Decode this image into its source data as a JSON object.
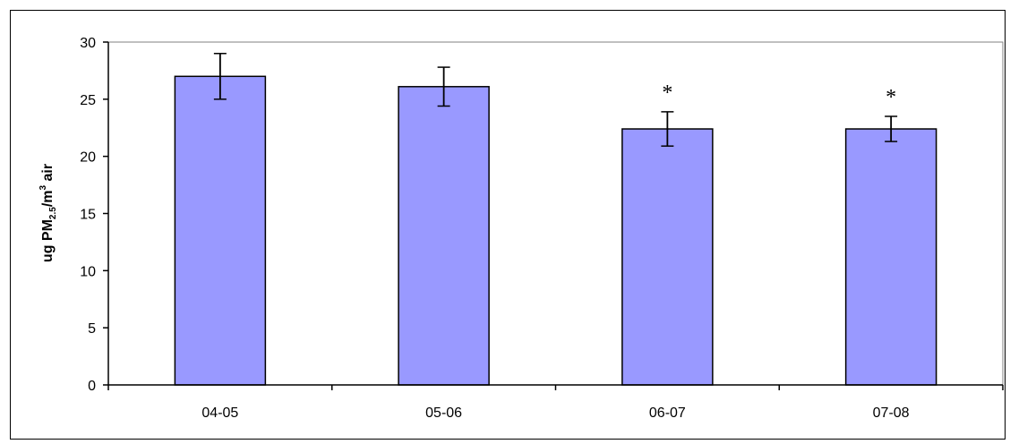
{
  "chart_data": {
    "type": "bar",
    "categories": [
      "04-05",
      "05-06",
      "06-07",
      "07-08"
    ],
    "values": [
      27.0,
      26.1,
      22.4,
      22.4
    ],
    "error": [
      2.0,
      1.7,
      1.5,
      1.1
    ],
    "annotations": [
      "",
      "",
      "*",
      "*"
    ],
    "title": "",
    "xlabel": "",
    "ylabel": {
      "main": "ug PM",
      "subscript": "2.5",
      "mid": "/m",
      "superscript": "3",
      "tail": " air"
    },
    "ylim": [
      0,
      30
    ],
    "yticks": [
      0,
      5,
      10,
      15,
      20,
      25,
      30
    ],
    "grid": false,
    "legend": "none",
    "colors": {
      "bar_fill": "#9999ff",
      "bar_stroke": "#000000",
      "axis": "#000000"
    }
  }
}
